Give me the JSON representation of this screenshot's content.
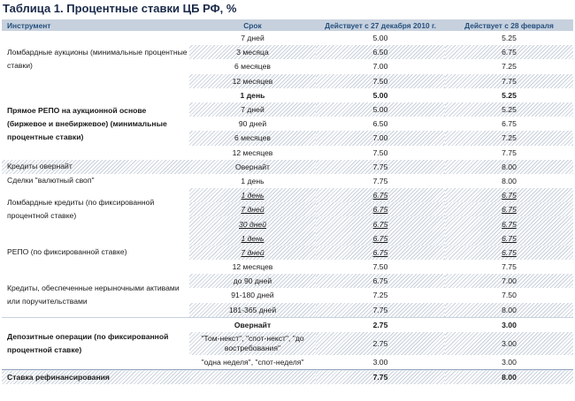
{
  "title": "Таблица 1. Процентные ставки ЦБ РФ, %",
  "headers": [
    "Инструмент",
    "Срок",
    "Действует с 27 декабря 2010 г.",
    "Действует с 28 февраля"
  ],
  "groups": [
    {
      "label": "Ломбардные аукционы (минимальные процентные ставки)",
      "rows": [
        {
          "term": "7 дней",
          "v1": "5.00",
          "v2": "5.25"
        },
        {
          "term": "3 месяца",
          "v1": "6.50",
          "v2": "6.75"
        },
        {
          "term": "6 месяцев",
          "v1": "7.00",
          "v2": "7.25"
        },
        {
          "term": "12 месяцев",
          "v1": "7.50",
          "v2": "7.75"
        }
      ]
    },
    {
      "label": "Прямое РЕПО на аукционной основе (биржевое и внебиржевое) (минимальные процентные ставки)",
      "rows": [
        {
          "term": "1 день",
          "v1": "5.00",
          "v2": "5.25"
        },
        {
          "term": "7 дней",
          "v1": "5.00",
          "v2": "5.25"
        },
        {
          "term": "90 дней",
          "v1": "6.50",
          "v2": "6.75"
        },
        {
          "term": "6 месяцев",
          "v1": "7.00",
          "v2": "7.25"
        },
        {
          "term": "12 месяцев",
          "v1": "7.50",
          "v2": "7.75"
        }
      ]
    },
    {
      "label": "Кредиты овернайт",
      "rows": [
        {
          "term": "Овернайт",
          "v1": "7.75",
          "v2": "8.00"
        }
      ]
    },
    {
      "label": "Сделки \"валютный своп\"",
      "rows": [
        {
          "term": "1 день",
          "v1": "7.75",
          "v2": "8.00"
        }
      ]
    },
    {
      "label": "Ломбардные кредиты (по фиксированной процентной ставке)",
      "rows": [
        {
          "term": "1 день",
          "v1": "6.75",
          "v2": "6.75"
        },
        {
          "term": "7 дней",
          "v1": "6.75",
          "v2": "6.75"
        },
        {
          "term": "30 дней",
          "v1": "6.75",
          "v2": "6.75"
        }
      ]
    },
    {
      "label": "РЕПО (по фиксированной ставке)",
      "rows": [
        {
          "term": "1 день",
          "v1": "6.75",
          "v2": "6.75"
        },
        {
          "term": "7 дней",
          "v1": "6.75",
          "v2": "6.75"
        },
        {
          "term": "12 месяцев",
          "v1": "7.50",
          "v2": "7.75"
        }
      ]
    },
    {
      "label": "Кредиты, обеспеченные нерыночными активами или поручительствами",
      "rows": [
        {
          "term": "до 90 дней",
          "v1": "6.75",
          "v2": "7.00"
        },
        {
          "term": "91-180 дней",
          "v1": "7.25",
          "v2": "7.50"
        },
        {
          "term": "181-365 дней",
          "v1": "7.75",
          "v2": "8.00"
        }
      ]
    },
    {
      "label": "Депозитные операции (по фиксированной процентной ставке)",
      "rows": [
        {
          "term": "Овернайт",
          "v1": "2.75",
          "v2": "3.00"
        },
        {
          "term": "\"Том-некст\", \"спот-некст\", \"до востребования\"",
          "v1": "2.75",
          "v2": "3.00"
        },
        {
          "term": "\"одна неделя\", \"спот-неделя\"",
          "v1": "3.00",
          "v2": "3.00"
        }
      ]
    },
    {
      "label": "Ставка рефинансирования",
      "rows": [
        {
          "term": "",
          "v1": "7.75",
          "v2": "8.00"
        }
      ]
    }
  ]
}
